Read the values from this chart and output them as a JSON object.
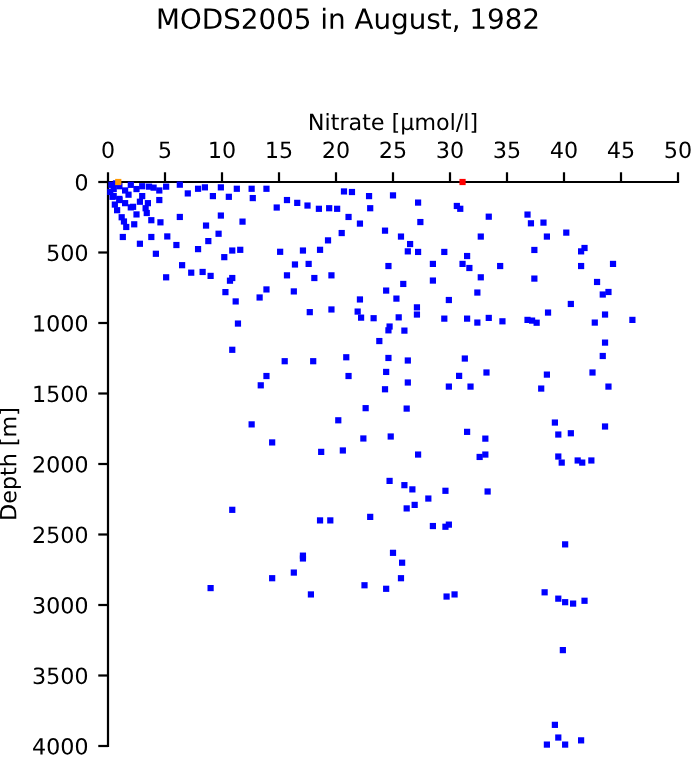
{
  "chart_data": {
    "type": "scatter",
    "title": "MODS2005 in August, 1982",
    "xlabel": "Nitrate [µmol/l]",
    "ylabel": "Depth [m]",
    "xlim": [
      0,
      50
    ],
    "xticks": [
      0,
      5,
      10,
      15,
      20,
      25,
      30,
      35,
      40,
      45,
      50
    ],
    "ylim": [
      4000,
      0
    ],
    "yticks": [
      0,
      500,
      1000,
      1500,
      2000,
      2500,
      3000,
      3500,
      4000
    ],
    "grid": false,
    "marker": "square",
    "series": [
      {
        "color": "#0000ff",
        "x": [
          9.0,
          10.9,
          18.6,
          19.5,
          23.0,
          24.7,
          26.0,
          26.7,
          26.2,
          26.9,
          28.1,
          29.6,
          33.3,
          28.5,
          29.6,
          29.9,
          17.1,
          17.1,
          25.0,
          25.8,
          16.3,
          14.4,
          25.7,
          22.5,
          24.4,
          17.8,
          29.7,
          30.4,
          38.3,
          39.5,
          40.1,
          40.8,
          41.8,
          40.1,
          39.9,
          39.2,
          39.5,
          38.5,
          40.1,
          41.5,
          25.0,
          27.2,
          30.6,
          30.9,
          27.4,
          33.4,
          36.8,
          37.1,
          38.2,
          40.2,
          24.3,
          25.7,
          26.5,
          32.7,
          38.5,
          26.3,
          27.2,
          29.5,
          37.4,
          41.5,
          41.8,
          31.5,
          24.6,
          28.5,
          31.1,
          31.7,
          34.4,
          41.5,
          44.3,
          32.7,
          37.4,
          42.9,
          25.9,
          28.5,
          24.4,
          43.9,
          43.4,
          25.3,
          29.9,
          32.4,
          40.6,
          27.1,
          27.1,
          25.5,
          29.5,
          31.5,
          32.4,
          33.4,
          34.6,
          36.8,
          37.2,
          37.6,
          38.6,
          42.7,
          43.6,
          46.0,
          24.7,
          26.0,
          43.6,
          43.4,
          24.6,
          26.3,
          31.3,
          42.5,
          38.5,
          33.2,
          30.8,
          24.4,
          24.3,
          26.3,
          29.9,
          31.8,
          38.0,
          43.9,
          26.2,
          39.2,
          39.5,
          40.6,
          43.6,
          24.8,
          31.5,
          33.1,
          27.2,
          33.1,
          32.6,
          39.5,
          39.8,
          41.2,
          41.6,
          42.4,
          3.6,
          6.3,
          7.0,
          7.9,
          8.5,
          9.2,
          9.9,
          10.6,
          11.3,
          12.6,
          13.9,
          14.8,
          15.7,
          16.6,
          17.5,
          18.5,
          19.4,
          20.1,
          20.7,
          21.4,
          22.9,
          23.0,
          22.1,
          21.1,
          20.5,
          19.3,
          18.6,
          17.1,
          15.1,
          16.4,
          15.7,
          18.1,
          19.6,
          17.6,
          16.3,
          17.7,
          19.6,
          22.1,
          21.9,
          22.2,
          23.3,
          23.8,
          24.6,
          13.3,
          13.9,
          15.5,
          13.9,
          13.4,
          18.0,
          20.9,
          21.1,
          20.2,
          22.6,
          22.4,
          12.6,
          14.4,
          18.7,
          20.6,
          11.4,
          10.9,
          11.2,
          10.3,
          10.2,
          10.9,
          11.6,
          11.8,
          12.7,
          9.9,
          8.6,
          9.7,
          8.8,
          7.9,
          6.5,
          7.3,
          8.3,
          9.0,
          10.7,
          10.9,
          5.1,
          6.3,
          4.6,
          3.8,
          3.8,
          5.2,
          6.0,
          2.8,
          4.2,
          1.3,
          1.6,
          3.3,
          4.5,
          2.2,
          1.0,
          0.4,
          5.1,
          0.3,
          0.5,
          1.0,
          1.5,
          2.0,
          2.5,
          3.0,
          0.5,
          1.0,
          1.5,
          0.8,
          1.2,
          2.0,
          2.5,
          3.0,
          3.5,
          4.0,
          4.5,
          0.2,
          0.7,
          1.8,
          2.8,
          3.4,
          0.6,
          1.4,
          2.3
        ],
        "values": [
          2880,
          2325,
          2400,
          2400,
          2375,
          2120,
          2150,
          2180,
          2315,
          2290,
          2245,
          2190,
          2195,
          2440,
          2445,
          2430,
          2650,
          2670,
          2630,
          2700,
          2770,
          2810,
          2810,
          2860,
          2885,
          2925,
          2940,
          2925,
          2910,
          2955,
          2980,
          2990,
          2970,
          2570,
          3320,
          3850,
          3940,
          3990,
          3990,
          3960,
          95,
          146,
          170,
          190,
          284,
          246,
          231,
          293,
          288,
          359,
          345,
          387,
          440,
          387,
          387,
          492,
          496,
          496,
          482,
          492,
          468,
          525,
          596,
          581,
          581,
          610,
          596,
          596,
          581,
          676,
          685,
          709,
          723,
          699,
          770,
          780,
          798,
          827,
          837,
          784,
          865,
          889,
          940,
          960,
          969,
          969,
          997,
          964,
          988,
          978,
          983,
          998,
          926,
          997,
          940,
          978,
          1025,
          1054,
          1139,
          1234,
          1248,
          1266,
          1252,
          1351,
          1366,
          1351,
          1375,
          1347,
          1470,
          1422,
          1451,
          1451,
          1465,
          1451,
          1607,
          1706,
          1791,
          1782,
          1734,
          1805,
          1772,
          1820,
          1933,
          1933,
          1950,
          1947,
          1990,
          1975,
          1990,
          1975,
          33,
          19,
          81,
          48,
          38,
          100,
          38,
          105,
          48,
          48,
          48,
          181,
          128,
          148,
          167,
          190,
          186,
          190,
          67,
          71,
          100,
          186,
          295,
          248,
          362,
          414,
          481,
          486,
          495,
          585,
          662,
          681,
          662,
          581,
          776,
          923,
          904,
          833,
          919,
          962,
          966,
          1128,
          1052,
          819,
          762,
          1271,
          1376,
          1442,
          1271,
          1243,
          1376,
          1690,
          1604,
          1819,
          1719,
          1847,
          1914,
          1904,
          1004,
          1190,
          847,
          781,
          533,
          486,
          481,
          281,
          114,
          238,
          309,
          367,
          419,
          476,
          590,
          643,
          638,
          666,
          700,
          681,
          676,
          248,
          286,
          271,
          390,
          386,
          447,
          438,
          509,
          390,
          319,
          186,
          128,
          176,
          128,
          105,
          33,
          20,
          50,
          30,
          60,
          20,
          50,
          30,
          100,
          120,
          150,
          200,
          250,
          180,
          230,
          100,
          150,
          40,
          60,
          70,
          10,
          90,
          140,
          220,
          160,
          280,
          300
        ]
      },
      {
        "color": "#ff9900",
        "x": [
          0.9
        ],
        "values": [
          0
        ]
      },
      {
        "color": "#ff0000",
        "x": [
          31.1
        ],
        "values": [
          0
        ]
      }
    ]
  }
}
